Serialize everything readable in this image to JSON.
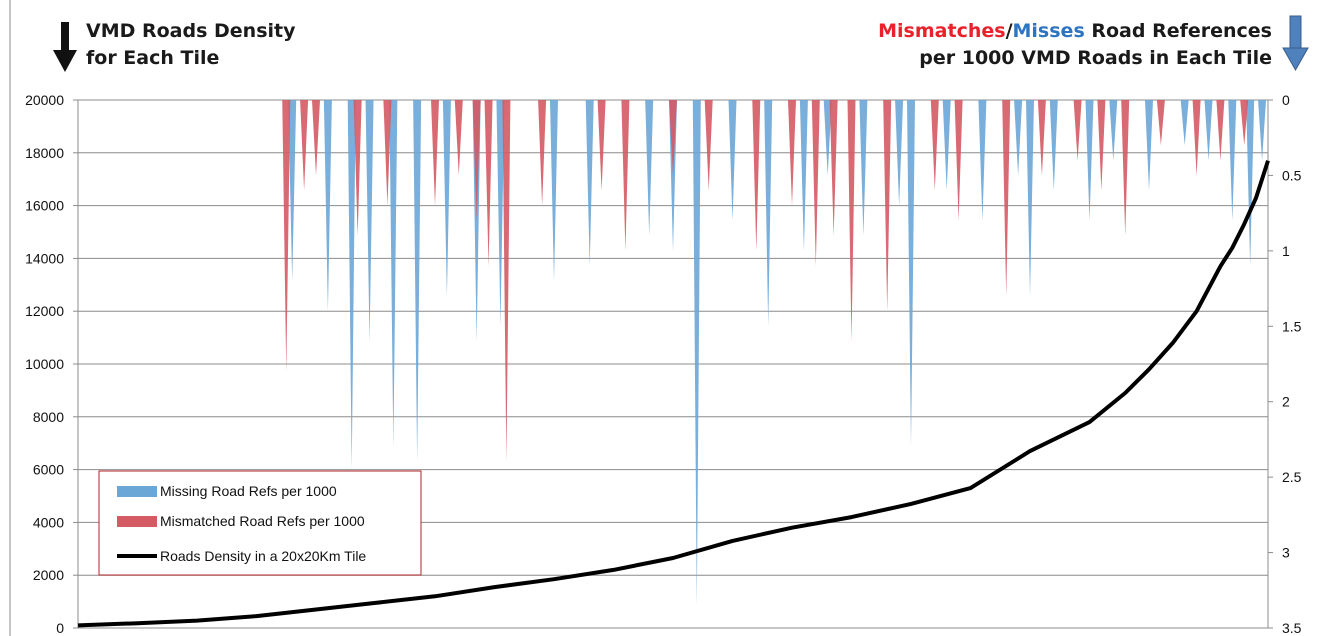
{
  "titles": {
    "left_line1": "VMD Roads Density",
    "left_line2": "for Each Tile",
    "right_part1": "Mismatches",
    "right_sep": "/",
    "right_part2": "Misses",
    "right_part3": " Road References",
    "right_line2": "per 1000 VMD Roads in Each Tile"
  },
  "colors": {
    "missing": "#6aa6d6",
    "mismatched": "#d45a64",
    "density": "#000000",
    "grid": "#8c8c8c",
    "legend_border": "#b0262c",
    "arrow_left": "#111111",
    "arrow_right": "#4f81bd"
  },
  "icons": {
    "left": "arrow-down-black-icon",
    "right": "arrow-down-blue-icon"
  },
  "chart_data": {
    "type": "bar+line",
    "title": "",
    "primary_axis": {
      "side": "left",
      "ylim": [
        0,
        20000
      ],
      "ticks": [
        "0",
        "2000",
        "4000",
        "6000",
        "8000",
        "10000",
        "12000",
        "14000",
        "16000",
        "18000",
        "20000"
      ]
    },
    "secondary_axis": {
      "side": "right",
      "ylim": [
        0,
        3.5
      ],
      "inverted": true,
      "ticks": [
        "0",
        "0.5",
        "1",
        "1.5",
        "2",
        "2.5",
        "3",
        "3.5"
      ]
    },
    "grid": true,
    "legend_position": "bottom-left",
    "legend": [
      {
        "label": "Missing Road Refs per 1000",
        "kind": "bar"
      },
      {
        "label": "Mismatched Road Refs per 1000",
        "kind": "bar"
      },
      {
        "label": "Roads Density in a 20x20Km Tile",
        "kind": "line"
      }
    ],
    "density_series": {
      "name": "Roads Density in a 20x20Km Tile",
      "x": [
        0,
        0.05,
        0.1,
        0.15,
        0.2,
        0.25,
        0.3,
        0.35,
        0.4,
        0.45,
        0.5,
        0.55,
        0.6,
        0.65,
        0.7,
        0.75,
        0.8,
        0.85,
        0.88,
        0.9,
        0.92,
        0.94,
        0.96,
        0.97,
        0.98,
        0.99,
        1.0
      ],
      "values": [
        100,
        180,
        280,
        450,
        700,
        950,
        1200,
        1550,
        1850,
        2200,
        2650,
        3300,
        3800,
        4200,
        4700,
        5300,
        6700,
        7800,
        8900,
        9800,
        10800,
        12000,
        13700,
        14400,
        15300,
        16300,
        17700
      ]
    },
    "missing_series": {
      "name": "Missing Road Refs per 1000",
      "x": [
        0.18,
        0.21,
        0.23,
        0.245,
        0.265,
        0.285,
        0.31,
        0.335,
        0.355,
        0.4,
        0.43,
        0.48,
        0.5,
        0.52,
        0.55,
        0.58,
        0.61,
        0.63,
        0.66,
        0.69,
        0.7,
        0.73,
        0.76,
        0.79,
        0.8,
        0.82,
        0.85,
        0.87,
        0.9,
        0.93,
        0.95,
        0.97,
        0.985,
        0.995
      ],
      "values": [
        1.2,
        1.4,
        2.45,
        1.6,
        2.3,
        2.4,
        1.3,
        1.6,
        1.5,
        1.2,
        1.1,
        0.9,
        1.0,
        3.35,
        0.8,
        1.5,
        1.0,
        0.5,
        0.9,
        0.7,
        2.3,
        0.6,
        0.8,
        0.5,
        1.3,
        0.6,
        0.8,
        0.4,
        0.6,
        0.3,
        0.4,
        0.8,
        1.1,
        0.4
      ]
    },
    "mismatched_series": {
      "name": "Mismatched Road Refs per 1000",
      "x": [
        0.175,
        0.19,
        0.2,
        0.235,
        0.26,
        0.3,
        0.32,
        0.335,
        0.345,
        0.36,
        0.39,
        0.44,
        0.46,
        0.5,
        0.53,
        0.57,
        0.6,
        0.62,
        0.635,
        0.65,
        0.68,
        0.72,
        0.74,
        0.78,
        0.81,
        0.84,
        0.86,
        0.88,
        0.91,
        0.94,
        0.96,
        0.98
      ],
      "values": [
        1.8,
        0.6,
        0.5,
        0.9,
        0.7,
        0.7,
        0.5,
        0.8,
        1.1,
        2.4,
        0.7,
        0.6,
        1.0,
        0.5,
        0.6,
        1.0,
        0.7,
        1.1,
        0.9,
        1.6,
        1.4,
        0.6,
        0.8,
        1.3,
        0.5,
        0.4,
        0.6,
        0.9,
        0.3,
        0.5,
        0.4,
        0.3
      ]
    }
  }
}
